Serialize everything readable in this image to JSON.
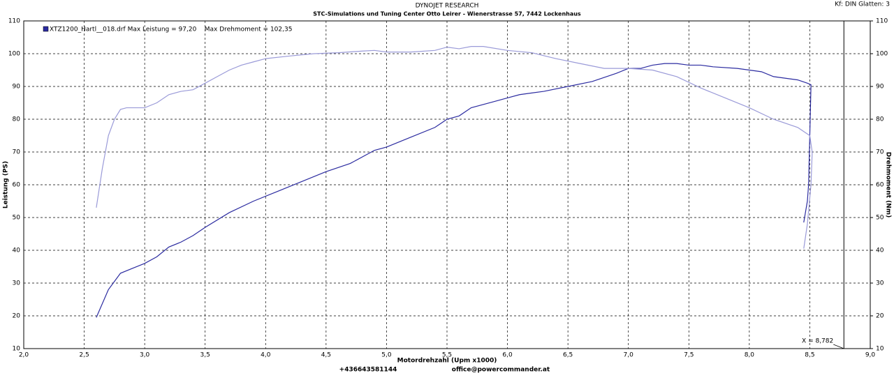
{
  "chart_data": {
    "type": "line",
    "title": "DYNOJET RESEARCH",
    "subtitle": "STC-Simulations und Tuning Center Otto Leirer - Wienerstrasse 57, 7442 Lockenhaus",
    "settings_label": "Kf: DIN  Glatten: 3",
    "legend_label": "XTZ1200_Hartl__018.drf Max Leistung = 97,20    Max Drehmoment = 102,35",
    "legend_color": "#2b2ba0",
    "x_label": "Motordrehzahl (Upm x1000)",
    "y_label": "Leistung (PS)",
    "y2_label": "Drehmoment (Nm)",
    "footer_phone": "+436643581144",
    "footer_email": "office@powercommander.at",
    "cursor": {
      "value": 8.782,
      "label": "X = 8,782"
    },
    "grid": true,
    "xlim": [
      2.0,
      9.0
    ],
    "xticks": [
      {
        "value": 2.0,
        "label": "2,0"
      },
      {
        "value": 2.5,
        "label": "2,5"
      },
      {
        "value": 3.0,
        "label": "3,0"
      },
      {
        "value": 3.5,
        "label": "3,5"
      },
      {
        "value": 4.0,
        "label": "4,0"
      },
      {
        "value": 4.5,
        "label": "4,5"
      },
      {
        "value": 5.0,
        "label": "5,0"
      },
      {
        "value": 5.5,
        "label": "5,5"
      },
      {
        "value": 6.0,
        "label": "6,0"
      },
      {
        "value": 6.5,
        "label": "6,5"
      },
      {
        "value": 7.0,
        "label": "7,0"
      },
      {
        "value": 7.5,
        "label": "7,5"
      },
      {
        "value": 8.0,
        "label": "8,0"
      },
      {
        "value": 8.5,
        "label": "8,5"
      },
      {
        "value": 9.0,
        "label": "9,0"
      }
    ],
    "ylim": [
      10,
      110
    ],
    "yticks": [
      10,
      20,
      30,
      40,
      50,
      60,
      70,
      80,
      90,
      100,
      110
    ],
    "y2lim": [
      10,
      110
    ],
    "y2ticks": [
      10,
      20,
      30,
      40,
      50,
      60,
      70,
      80,
      90,
      100,
      110
    ],
    "series": [
      {
        "color": "#2b2ba0",
        "axis": "y",
        "x": [
          2.6,
          2.7,
          2.8,
          2.9,
          3.0,
          3.1,
          3.2,
          3.3,
          3.4,
          3.5,
          3.7,
          3.9,
          4.1,
          4.3,
          4.5,
          4.7,
          4.9,
          5.0,
          5.2,
          5.4,
          5.5,
          5.6,
          5.7,
          5.9,
          6.0,
          6.1,
          6.3,
          6.5,
          6.7,
          6.9,
          7.0,
          7.1,
          7.2,
          7.3,
          7.4,
          7.5,
          7.6,
          7.7,
          7.9,
          8.0,
          8.1,
          8.2,
          8.3,
          8.4,
          8.48,
          8.51,
          8.5,
          8.49,
          8.48,
          8.45
        ],
        "values": [
          19.5,
          28,
          33,
          34.5,
          36,
          38,
          41,
          42.5,
          44.5,
          47,
          51.5,
          55,
          58,
          61,
          64,
          66.5,
          70.5,
          71.5,
          74.5,
          77.5,
          80,
          81,
          83.5,
          85.5,
          86.5,
          87.5,
          88.5,
          90,
          91.5,
          94,
          95.5,
          95.5,
          96.5,
          97,
          97,
          96.5,
          96.5,
          96,
          95.5,
          95,
          94.5,
          93,
          92.5,
          92,
          91,
          90.5,
          75,
          60,
          55,
          48.5
        ]
      },
      {
        "color": "#9a9ad8",
        "axis": "y2",
        "x": [
          2.6,
          2.65,
          2.7,
          2.75,
          2.8,
          2.85,
          2.9,
          3.0,
          3.1,
          3.2,
          3.3,
          3.4,
          3.5,
          3.6,
          3.7,
          3.8,
          3.9,
          4.0,
          4.2,
          4.4,
          4.6,
          4.8,
          4.9,
          5.0,
          5.2,
          5.4,
          5.5,
          5.6,
          5.7,
          5.8,
          6.0,
          6.2,
          6.4,
          6.6,
          6.8,
          7.0,
          7.2,
          7.4,
          7.6,
          7.8,
          8.0,
          8.2,
          8.4,
          8.5,
          8.52,
          8.51,
          8.48,
          8.45
        ],
        "values": [
          53,
          65,
          75,
          80,
          83,
          83.5,
          83.5,
          83.5,
          85,
          87.5,
          88.5,
          89,
          91,
          93,
          95,
          96.5,
          97.5,
          98.5,
          99.3,
          100,
          100.3,
          100.8,
          101,
          100.5,
          100.5,
          101,
          102,
          101.5,
          102.2,
          102.2,
          101,
          100.3,
          98.5,
          97,
          95.5,
          95.5,
          95,
          93,
          89.5,
          86.5,
          83.5,
          80,
          77.5,
          75,
          70,
          60,
          48,
          40.5
        ]
      }
    ]
  }
}
